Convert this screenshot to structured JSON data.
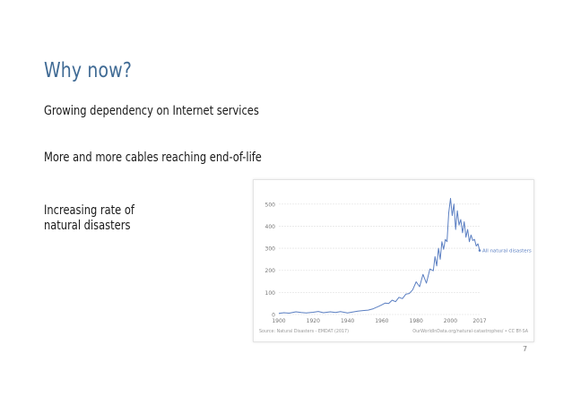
{
  "slide": {
    "title": "Why now?",
    "bullets": [
      "Growing dependency on Internet services",
      "More and more cables reaching end-of-life",
      "Increasing rate of\nnatural disasters"
    ],
    "page_number": "7"
  },
  "chart_data": {
    "type": "line",
    "series": [
      {
        "name": "All natural disasters",
        "color": "#5b7fc2",
        "x": [
          1900,
          1903,
          1906,
          1910,
          1913,
          1916,
          1920,
          1923,
          1926,
          1930,
          1933,
          1936,
          1940,
          1943,
          1946,
          1949,
          1952,
          1955,
          1958,
          1960,
          1962,
          1964,
          1966,
          1968,
          1970,
          1972,
          1974,
          1976,
          1978,
          1980,
          1982,
          1984,
          1986,
          1988,
          1990,
          1991,
          1992,
          1993,
          1994,
          1995,
          1996,
          1997,
          1998,
          1999,
          2000,
          2001,
          2002,
          2003,
          2004,
          2005,
          2006,
          2007,
          2008,
          2009,
          2010,
          2011,
          2012,
          2013,
          2014,
          2015,
          2016,
          2017
        ],
        "y": [
          5,
          8,
          6,
          12,
          9,
          7,
          10,
          14,
          8,
          12,
          9,
          13,
          7,
          11,
          15,
          18,
          20,
          26,
          36,
          44,
          52,
          50,
          65,
          58,
          78,
          72,
          92,
          95,
          112,
          148,
          126,
          182,
          142,
          206,
          198,
          262,
          220,
          300,
          250,
          330,
          295,
          340,
          330,
          460,
          526,
          448,
          500,
          385,
          470,
          405,
          430,
          370,
          420,
          350,
          385,
          330,
          360,
          335,
          340,
          310,
          320,
          290
        ]
      }
    ],
    "x_ticks": [
      "1900",
      "1920",
      "1940",
      "1960",
      "1980",
      "2000",
      "2017"
    ],
    "y_ticks": [
      "0",
      "100",
      "200",
      "300",
      "400",
      "500"
    ],
    "xlim": [
      1900,
      2017
    ],
    "ylim": [
      0,
      560
    ],
    "grid": true,
    "annotations": [
      "All natural disasters",
      "Source: Natural Disasters - EMDAT (2017)",
      "OurWorldInData.org/natural-catastrophes/ • CC BY-SA"
    ]
  }
}
